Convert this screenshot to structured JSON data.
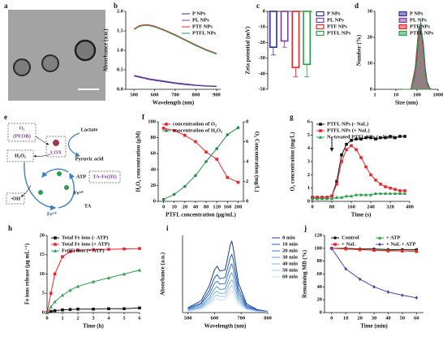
{
  "image_panel": {
    "label": "a"
  },
  "diagram": {
    "label": "e",
    "nodes": [
      "O₂",
      "(PFOB)",
      "LOX",
      "Lactate",
      "Pyruvic acid",
      "H₂O₂",
      "ATP",
      "TA-Fe(III)",
      "Fe³⁺",
      "TA",
      "Fe²⁺",
      "·OH"
    ]
  },
  "chart_data": [
    {
      "type": "line",
      "label": "b",
      "x_label": "Wavelength (nm)",
      "y_label": "Absorbance (a.u.)",
      "x": [
        500,
        525,
        550,
        575,
        600,
        650,
        700,
        750,
        800,
        850,
        900
      ],
      "xlim": [
        460,
        920
      ],
      "xticks": [
        500,
        600,
        700,
        800,
        900
      ],
      "ylim": [
        0,
        2
      ],
      "yticks": [
        {
          "value": 0,
          "label": "0.0"
        },
        {
          "value": 0.5,
          "label": "0.5"
        },
        {
          "value": 1,
          "label": "1.0"
        },
        {
          "value": 1.5,
          "label": "1.5"
        },
        {
          "value": 2,
          "label": "2.0"
        }
      ],
      "legend": "upper right",
      "series": [
        {
          "name": "P NPs",
          "color": "#2b2f8f",
          "values": [
            0.34,
            0.31,
            0.28,
            0.25,
            0.23,
            0.19,
            0.15,
            0.12,
            0.1,
            0.08,
            0.07
          ]
        },
        {
          "name": "PL NPs",
          "color": "#7b3f9e",
          "values": [
            0.36,
            0.33,
            0.3,
            0.27,
            0.25,
            0.21,
            0.17,
            0.14,
            0.11,
            0.09,
            0.08
          ]
        },
        {
          "name": "PTF NPs",
          "color": "#e8262b",
          "values": [
            1.55,
            1.63,
            1.66,
            1.65,
            1.62,
            1.52,
            1.4,
            1.27,
            1.14,
            1.02,
            0.92
          ]
        },
        {
          "name": "PTFL NPs",
          "color": "#2a9d4a",
          "values": [
            1.53,
            1.61,
            1.64,
            1.63,
            1.6,
            1.5,
            1.38,
            1.25,
            1.12,
            1.0,
            0.9
          ]
        }
      ]
    },
    {
      "type": "bar",
      "label": "c",
      "y_label": "Zeta potential (mV)",
      "categories": [
        "P NPs",
        "PL NPs",
        "PTF NPs",
        "PTFL NPs"
      ],
      "values": [
        -23,
        -19,
        -36,
        -34
      ],
      "errors": [
        5,
        4,
        6,
        8
      ],
      "colors": [
        "#2b2f8f",
        "#7b3f9e",
        "#e8262b",
        "#2a9d4a"
      ],
      "ylim": [
        -50,
        0
      ],
      "yticks": [
        0,
        -10,
        -20,
        -30,
        -40,
        -50
      ],
      "legend": "right"
    },
    {
      "type": "area",
      "label": "d",
      "x_label": "Size (nm)",
      "y_label": "Number (%)",
      "x": [
        20,
        50,
        80,
        100,
        120,
        150,
        200,
        250,
        300,
        400,
        500
      ],
      "log_x": true,
      "xlim": [
        1,
        1000
      ],
      "xticks": [
        1,
        10,
        100,
        1000
      ],
      "ylim": [
        0,
        30
      ],
      "yticks": [
        0,
        10,
        20,
        30
      ],
      "legend": "upper right",
      "series": [
        {
          "name": "P NPs",
          "color": "#2b2f8f",
          "values": [
            0,
            0,
            5,
            12,
            20,
            24,
            18,
            8,
            3,
            0.5,
            0
          ]
        },
        {
          "name": "PL NPs",
          "color": "#7b3f9e",
          "values": [
            0,
            0,
            6,
            14,
            22,
            25,
            17,
            7,
            2,
            0.4,
            0
          ]
        },
        {
          "name": "PTF NPs",
          "color": "#e8262b",
          "values": [
            0,
            0,
            8,
            17,
            24,
            23,
            14,
            5,
            1.5,
            0.2,
            0
          ]
        },
        {
          "name": "PTFL NPs",
          "color": "#2a9d4a",
          "values": [
            0,
            0,
            7,
            15,
            23,
            26,
            16,
            6,
            2,
            0.3,
            0
          ]
        }
      ]
    },
    {
      "type": "line",
      "label": "f",
      "x_label": "PTFL concentration (μg/mL)",
      "y_label": "H₂O₂ concentration (μM)",
      "y2_label": "O₂ Concentration (mg/L)",
      "categories": [
        0,
        10,
        20,
        40,
        80,
        120,
        160,
        200
      ],
      "ylim": [
        0,
        100
      ],
      "yticks": [
        0,
        20,
        40,
        60,
        80,
        100
      ],
      "y2lim": [
        0,
        8
      ],
      "y2ticks": [
        0,
        2,
        4,
        6,
        8
      ],
      "markers": true,
      "legend": "upper left",
      "series": [
        {
          "name": "concentration of O₂",
          "color": "#e8262b",
          "marker": "square",
          "values": [
            92,
            89,
            83,
            75,
            62,
            53,
            30,
            24
          ]
        },
        {
          "name": "concentration of H₂O₂",
          "color": "#2a8a4a",
          "marker": "circle",
          "axis": "y2",
          "values": [
            0.2,
            0.7,
            1.5,
            2.6,
            4.0,
            5.3,
            6.7,
            7.4
          ]
        }
      ]
    },
    {
      "type": "line",
      "label": "g",
      "x_label": "Time (s)",
      "y_label": "O₂ concentration (mg/L)",
      "x": [
        0,
        20,
        40,
        60,
        80,
        100,
        120,
        140,
        160,
        180,
        200,
        220,
        240,
        260,
        280,
        300,
        320,
        340,
        360,
        380
      ],
      "xlim": [
        0,
        400
      ],
      "xticks": [
        0,
        80,
        160,
        240,
        320,
        400
      ],
      "ylim": [
        0,
        6
      ],
      "yticks": [
        0,
        1,
        2,
        3,
        4,
        5,
        6
      ],
      "markers": true,
      "legend": "upper left",
      "series": [
        {
          "name": "PTFL NPs (- NaL)",
          "color": "#111111",
          "marker": "square",
          "values": [
            0.3,
            0.3,
            0.3,
            0.3,
            0.4,
            1.5,
            3.5,
            4.3,
            4.6,
            4.7,
            4.7,
            4.8,
            4.8,
            4.7,
            4.8,
            4.8,
            4.9,
            4.8,
            4.9,
            4.9
          ]
        },
        {
          "name": "PTFL NPs (+ NaL)",
          "color": "#e8262b",
          "marker": "square",
          "values": [
            0.3,
            0.3,
            0.3,
            0.3,
            0.4,
            1.3,
            3.0,
            3.9,
            4.2,
            3.9,
            3.3,
            2.6,
            2.0,
            1.6,
            1.3,
            1.1,
            1.0,
            0.9,
            0.8,
            0.8
          ]
        },
        {
          "name": "N₂-treated PTFL NPs (+ NaL)",
          "color": "#2a9d4a",
          "marker": "triangle",
          "values": [
            0.2,
            0.2,
            0.2,
            0.2,
            0.2,
            0.3,
            0.3,
            0.4,
            0.4,
            0.5,
            0.5,
            0.5,
            0.5,
            0.6,
            0.6,
            0.6,
            0.6,
            0.6,
            0.6,
            0.6
          ]
        }
      ]
    },
    {
      "type": "line",
      "label": "h",
      "x_label": "Time (h)",
      "y_label": "Fe ions release (μg mL⁻¹)",
      "x": [
        0,
        0.25,
        0.5,
        1,
        1.5,
        2,
        3,
        4,
        5,
        6
      ],
      "xlim": [
        0,
        6
      ],
      "xticks": [
        0,
        1,
        2,
        3,
        4,
        5,
        6
      ],
      "ylim": [
        0,
        20
      ],
      "yticks": [
        0,
        5,
        10,
        15,
        20
      ],
      "markers": true,
      "legend": "upper left",
      "series": [
        {
          "name": "Total Fe ions (- ATP)",
          "color": "#111111",
          "marker": "square",
          "values": [
            0,
            0.3,
            0.5,
            0.7,
            0.8,
            0.9,
            0.9,
            1.0,
            1.0,
            1.2
          ]
        },
        {
          "name": "Total Fe ions (+ ATP)",
          "color": "#e8262b",
          "marker": "square",
          "values": [
            0,
            5,
            10,
            14.5,
            15.8,
            16.2,
            16.3,
            16.4,
            16.5,
            16.6
          ]
        },
        {
          "name": "Fe(II) ions (+ ATP)",
          "color": "#2a9d4a",
          "marker": "triangle",
          "values": [
            0,
            1.5,
            2.8,
            4.5,
            5.8,
            6.8,
            8.0,
            9.0,
            10.0,
            11.0
          ]
        }
      ]
    },
    {
      "type": "line",
      "label": "i",
      "x_label": "Wavelength (nm)",
      "y_label": "Absorbance (a.u.)",
      "x": [
        500,
        550,
        580,
        600,
        610,
        620,
        640,
        660,
        665,
        670,
        690,
        720,
        760,
        800
      ],
      "xlim": [
        480,
        800
      ],
      "xticks": [
        500,
        600,
        700,
        800
      ],
      "ylim": [
        0,
        1.3
      ],
      "legend": "right",
      "series": [
        {
          "name": "0 min",
          "color": "#1a3d8f",
          "values": [
            0.08,
            0.2,
            0.45,
            0.72,
            0.78,
            0.7,
            0.72,
            1.15,
            1.2,
            1.1,
            0.5,
            0.15,
            0.05,
            0.02
          ]
        },
        {
          "name": "10 min",
          "color": "#2457b0",
          "values": [
            0.07,
            0.16,
            0.37,
            0.59,
            0.64,
            0.57,
            0.59,
            0.94,
            0.98,
            0.9,
            0.41,
            0.12,
            0.04,
            0.02
          ]
        },
        {
          "name": "20 min",
          "color": "#3b74c8",
          "values": [
            0.05,
            0.14,
            0.31,
            0.49,
            0.53,
            0.48,
            0.49,
            0.78,
            0.82,
            0.75,
            0.34,
            0.1,
            0.03,
            0.01
          ]
        },
        {
          "name": "30 min",
          "color": "#5b93d8",
          "values": [
            0.04,
            0.11,
            0.25,
            0.4,
            0.44,
            0.39,
            0.4,
            0.64,
            0.67,
            0.62,
            0.28,
            0.08,
            0.03,
            0.01
          ]
        },
        {
          "name": "40 min",
          "color": "#7fb0e5",
          "values": [
            0.04,
            0.09,
            0.21,
            0.33,
            0.36,
            0.32,
            0.33,
            0.53,
            0.55,
            0.51,
            0.23,
            0.07,
            0.02,
            0.01
          ]
        },
        {
          "name": "50 min",
          "color": "#a2c8ef",
          "values": [
            0.03,
            0.08,
            0.17,
            0.27,
            0.3,
            0.27,
            0.27,
            0.44,
            0.46,
            0.42,
            0.19,
            0.06,
            0.02,
            0.01
          ]
        },
        {
          "name": "60 min",
          "color": "#c4ddf6",
          "values": [
            0.02,
            0.06,
            0.14,
            0.22,
            0.23,
            0.21,
            0.22,
            0.35,
            0.36,
            0.33,
            0.15,
            0.05,
            0.02,
            0.01
          ]
        }
      ]
    },
    {
      "type": "line",
      "label": "j",
      "x_label": "Time (min)",
      "y_label": "Remaining MB (%)",
      "x": [
        0,
        10,
        20,
        30,
        40,
        50,
        60
      ],
      "xlim": [
        -5,
        65
      ],
      "xticks": [
        0,
        10,
        20,
        30,
        40,
        50,
        60
      ],
      "ylim": [
        0,
        120
      ],
      "yticks": [
        0,
        20,
        40,
        60,
        80,
        100,
        120
      ],
      "markers": true,
      "legend": "upper center",
      "series": [
        {
          "name": "Control",
          "color": "#111111",
          "marker": "circle",
          "values": [
            100,
            100,
            99,
            99,
            98,
            98,
            98
          ]
        },
        {
          "name": "+ ATP",
          "color": "#2a9d4a",
          "marker": "triangle",
          "values": [
            100,
            99,
            98,
            97,
            97,
            96,
            96
          ]
        },
        {
          "name": "+ NaL",
          "color": "#e8262b",
          "marker": "square",
          "values": [
            100,
            99,
            98,
            97,
            96,
            96,
            95
          ]
        },
        {
          "name": "+ NaL + ATP",
          "color": "#5a3fa0",
          "marker": "diamond",
          "values": [
            100,
            68,
            52,
            40,
            32,
            27,
            23
          ]
        }
      ]
    }
  ]
}
